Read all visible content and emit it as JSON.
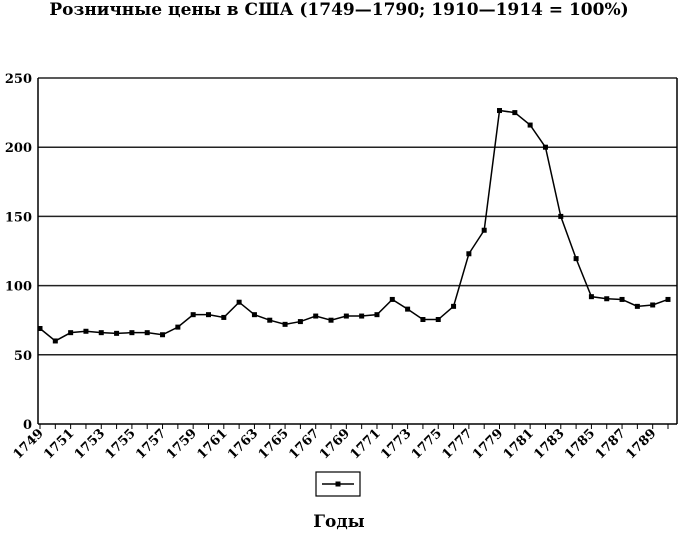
{
  "chart_data": {
    "type": "line",
    "title": "Розничные цены в США (1749—1790; 1910—1914 = 100%)",
    "xlabel": "Годы",
    "ylabel": "",
    "ylim": [
      0,
      250
    ],
    "yticks": [
      0,
      50,
      100,
      150,
      200,
      250
    ],
    "grid": true,
    "legend": "bottom",
    "x": [
      1749,
      1750,
      1751,
      1752,
      1753,
      1754,
      1755,
      1756,
      1757,
      1758,
      1759,
      1760,
      1761,
      1762,
      1763,
      1764,
      1765,
      1766,
      1767,
      1768,
      1769,
      1770,
      1771,
      1772,
      1773,
      1774,
      1775,
      1776,
      1777,
      1778,
      1779,
      1780,
      1781,
      1782,
      1783,
      1784,
      1785,
      1786,
      1787,
      1788,
      1789,
      1790
    ],
    "xtick_labels": [
      "1749",
      "1751",
      "1753",
      "1755",
      "1757",
      "1759",
      "1761",
      "1763",
      "1765",
      "1767",
      "1769",
      "1771",
      "1773",
      "1775",
      "1777",
      "1779",
      "1781",
      "1783",
      "1785",
      "1787",
      "1789"
    ],
    "series": [
      {
        "values": [
          69,
          60,
          66,
          67,
          66,
          65.5,
          66,
          66,
          64.5,
          70,
          79,
          79,
          77,
          88,
          79,
          75,
          72,
          74,
          78,
          75,
          78,
          78,
          79,
          90,
          83,
          75.5,
          75.5,
          85,
          123,
          140,
          226.5,
          225,
          216,
          200,
          150,
          119.5,
          92,
          90.5,
          90,
          85,
          86,
          90
        ]
      }
    ]
  }
}
